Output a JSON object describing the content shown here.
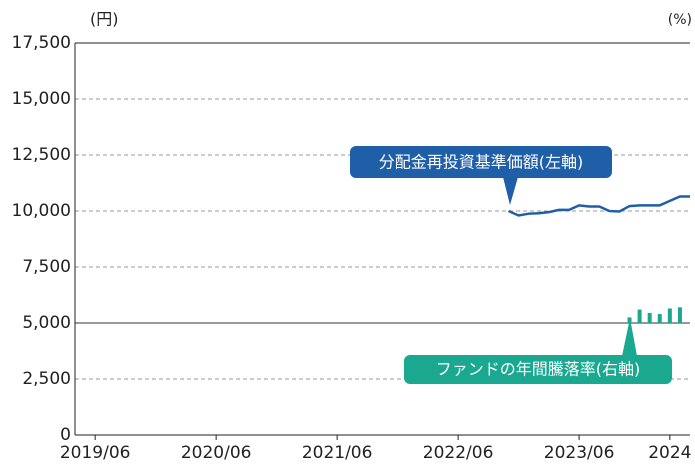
{
  "chart_data": {
    "type": "line_bar",
    "y_axis_label": "(円)",
    "y2_axis_label": "(%)",
    "xlim": [
      "2019/04",
      "2024/05"
    ],
    "xticks": [
      "2019/06",
      "2020/06",
      "2021/06",
      "2022/06",
      "2023/06",
      {
        "value": "2024/03",
        "label": "2024"
      }
    ],
    "ylim": [
      0,
      17500
    ],
    "yticks": [
      0,
      {
        "value": 2500,
        "label": "2,500"
      },
      {
        "value": 5000,
        "label": "5,000"
      },
      {
        "value": 7500,
        "label": "7,500"
      },
      {
        "value": 10000,
        "label": "10,000"
      },
      {
        "value": 12500,
        "label": "12,500"
      },
      {
        "value": 15000,
        "label": "15,000"
      },
      {
        "value": 17500,
        "label": "17,500"
      }
    ],
    "y2lim": [
      -20,
      50
    ],
    "grid": true,
    "series": [
      {
        "name": "分配金再投資基準価額(左軸)",
        "kind": "line",
        "color": "#1f5fa8",
        "x": [
          "2022/11",
          "2022/12",
          "2023/01",
          "2023/02",
          "2023/03",
          "2023/04",
          "2023/05",
          "2023/06",
          "2023/07",
          "2023/08",
          "2023/09",
          "2023/10",
          "2023/11",
          "2023/12",
          "2024/01",
          "2024/02",
          "2024/03",
          "2024/04",
          "2024/05"
        ],
        "values": [
          10000,
          9800,
          9880,
          9900,
          9950,
          10050,
          10050,
          10250,
          10200,
          10200,
          10000,
          9980,
          10220,
          10250,
          10250,
          10250,
          10450,
          10650,
          10650
        ]
      },
      {
        "name": "ファンドの年間騰落率(右軸)",
        "kind": "bar",
        "axis": "y2",
        "color": "#1aa890",
        "x": [
          "2023/11",
          "2023/12",
          "2024/01",
          "2024/02",
          "2024/03",
          "2024/04"
        ],
        "values": [
          1.0,
          2.4,
          1.8,
          1.6,
          2.6,
          2.8
        ]
      }
    ]
  }
}
